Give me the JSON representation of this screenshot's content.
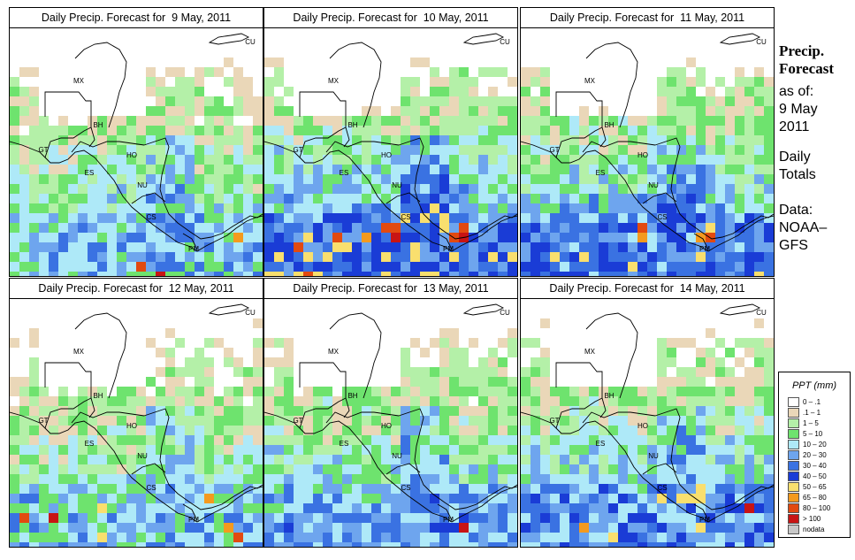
{
  "panels": [
    {
      "title": "Daily Precip. Forecast for  9 May, 2011",
      "seed": 11,
      "wet": 0.9
    },
    {
      "title": "Daily Precip. Forecast for  10 May, 2011",
      "seed": 23,
      "wet": 1.25
    },
    {
      "title": "Daily Precip. Forecast for  11 May, 2011",
      "seed": 37,
      "wet": 1.15
    },
    {
      "title": "Daily Precip. Forecast for  12 May, 2011",
      "seed": 41,
      "wet": 0.85
    },
    {
      "title": "Daily Precip. Forecast for  13 May, 2011",
      "seed": 53,
      "wet": 1.0
    },
    {
      "title": "Daily Precip. Forecast for  14 May, 2011",
      "seed": 67,
      "wet": 1.1
    }
  ],
  "country_labels": [
    "MX",
    "BH",
    "GT",
    "HO",
    "ES",
    "NU",
    "CS",
    "PM",
    "CU"
  ],
  "side": {
    "heading_line1": "Precip.",
    "heading_line2": "Forecast",
    "asof": "as of:",
    "date_line1": "9 May",
    "date_line2": "2011",
    "type_line1": "Daily",
    "type_line2": "Totals",
    "data_line1": "Data:",
    "data_line2": "NOAA–",
    "data_line3": "GFS"
  },
  "legend": {
    "title": "PPT (mm)",
    "items": [
      {
        "label": "0 – .1",
        "color": "#ffffff"
      },
      {
        "label": ".1 – 1",
        "color": "#ead7b8"
      },
      {
        "label": "1 – 5",
        "color": "#b4f0a8"
      },
      {
        "label": "5 – 10",
        "color": "#6ee36e"
      },
      {
        "label": "10 – 20",
        "color": "#aee9f8"
      },
      {
        "label": "20 – 30",
        "color": "#6ea5ee"
      },
      {
        "label": "30 – 40",
        "color": "#3a72e2"
      },
      {
        "label": "40 – 50",
        "color": "#1a3cd6"
      },
      {
        "label": "50 – 65",
        "color": "#f9df6e"
      },
      {
        "label": "65 – 80",
        "color": "#f49a1e"
      },
      {
        "label": "80 – 100",
        "color": "#e24a10"
      },
      {
        "label": "> 100",
        "color": "#c81414"
      },
      {
        "label": "nodata",
        "color": "#c8c8c8"
      }
    ]
  }
}
